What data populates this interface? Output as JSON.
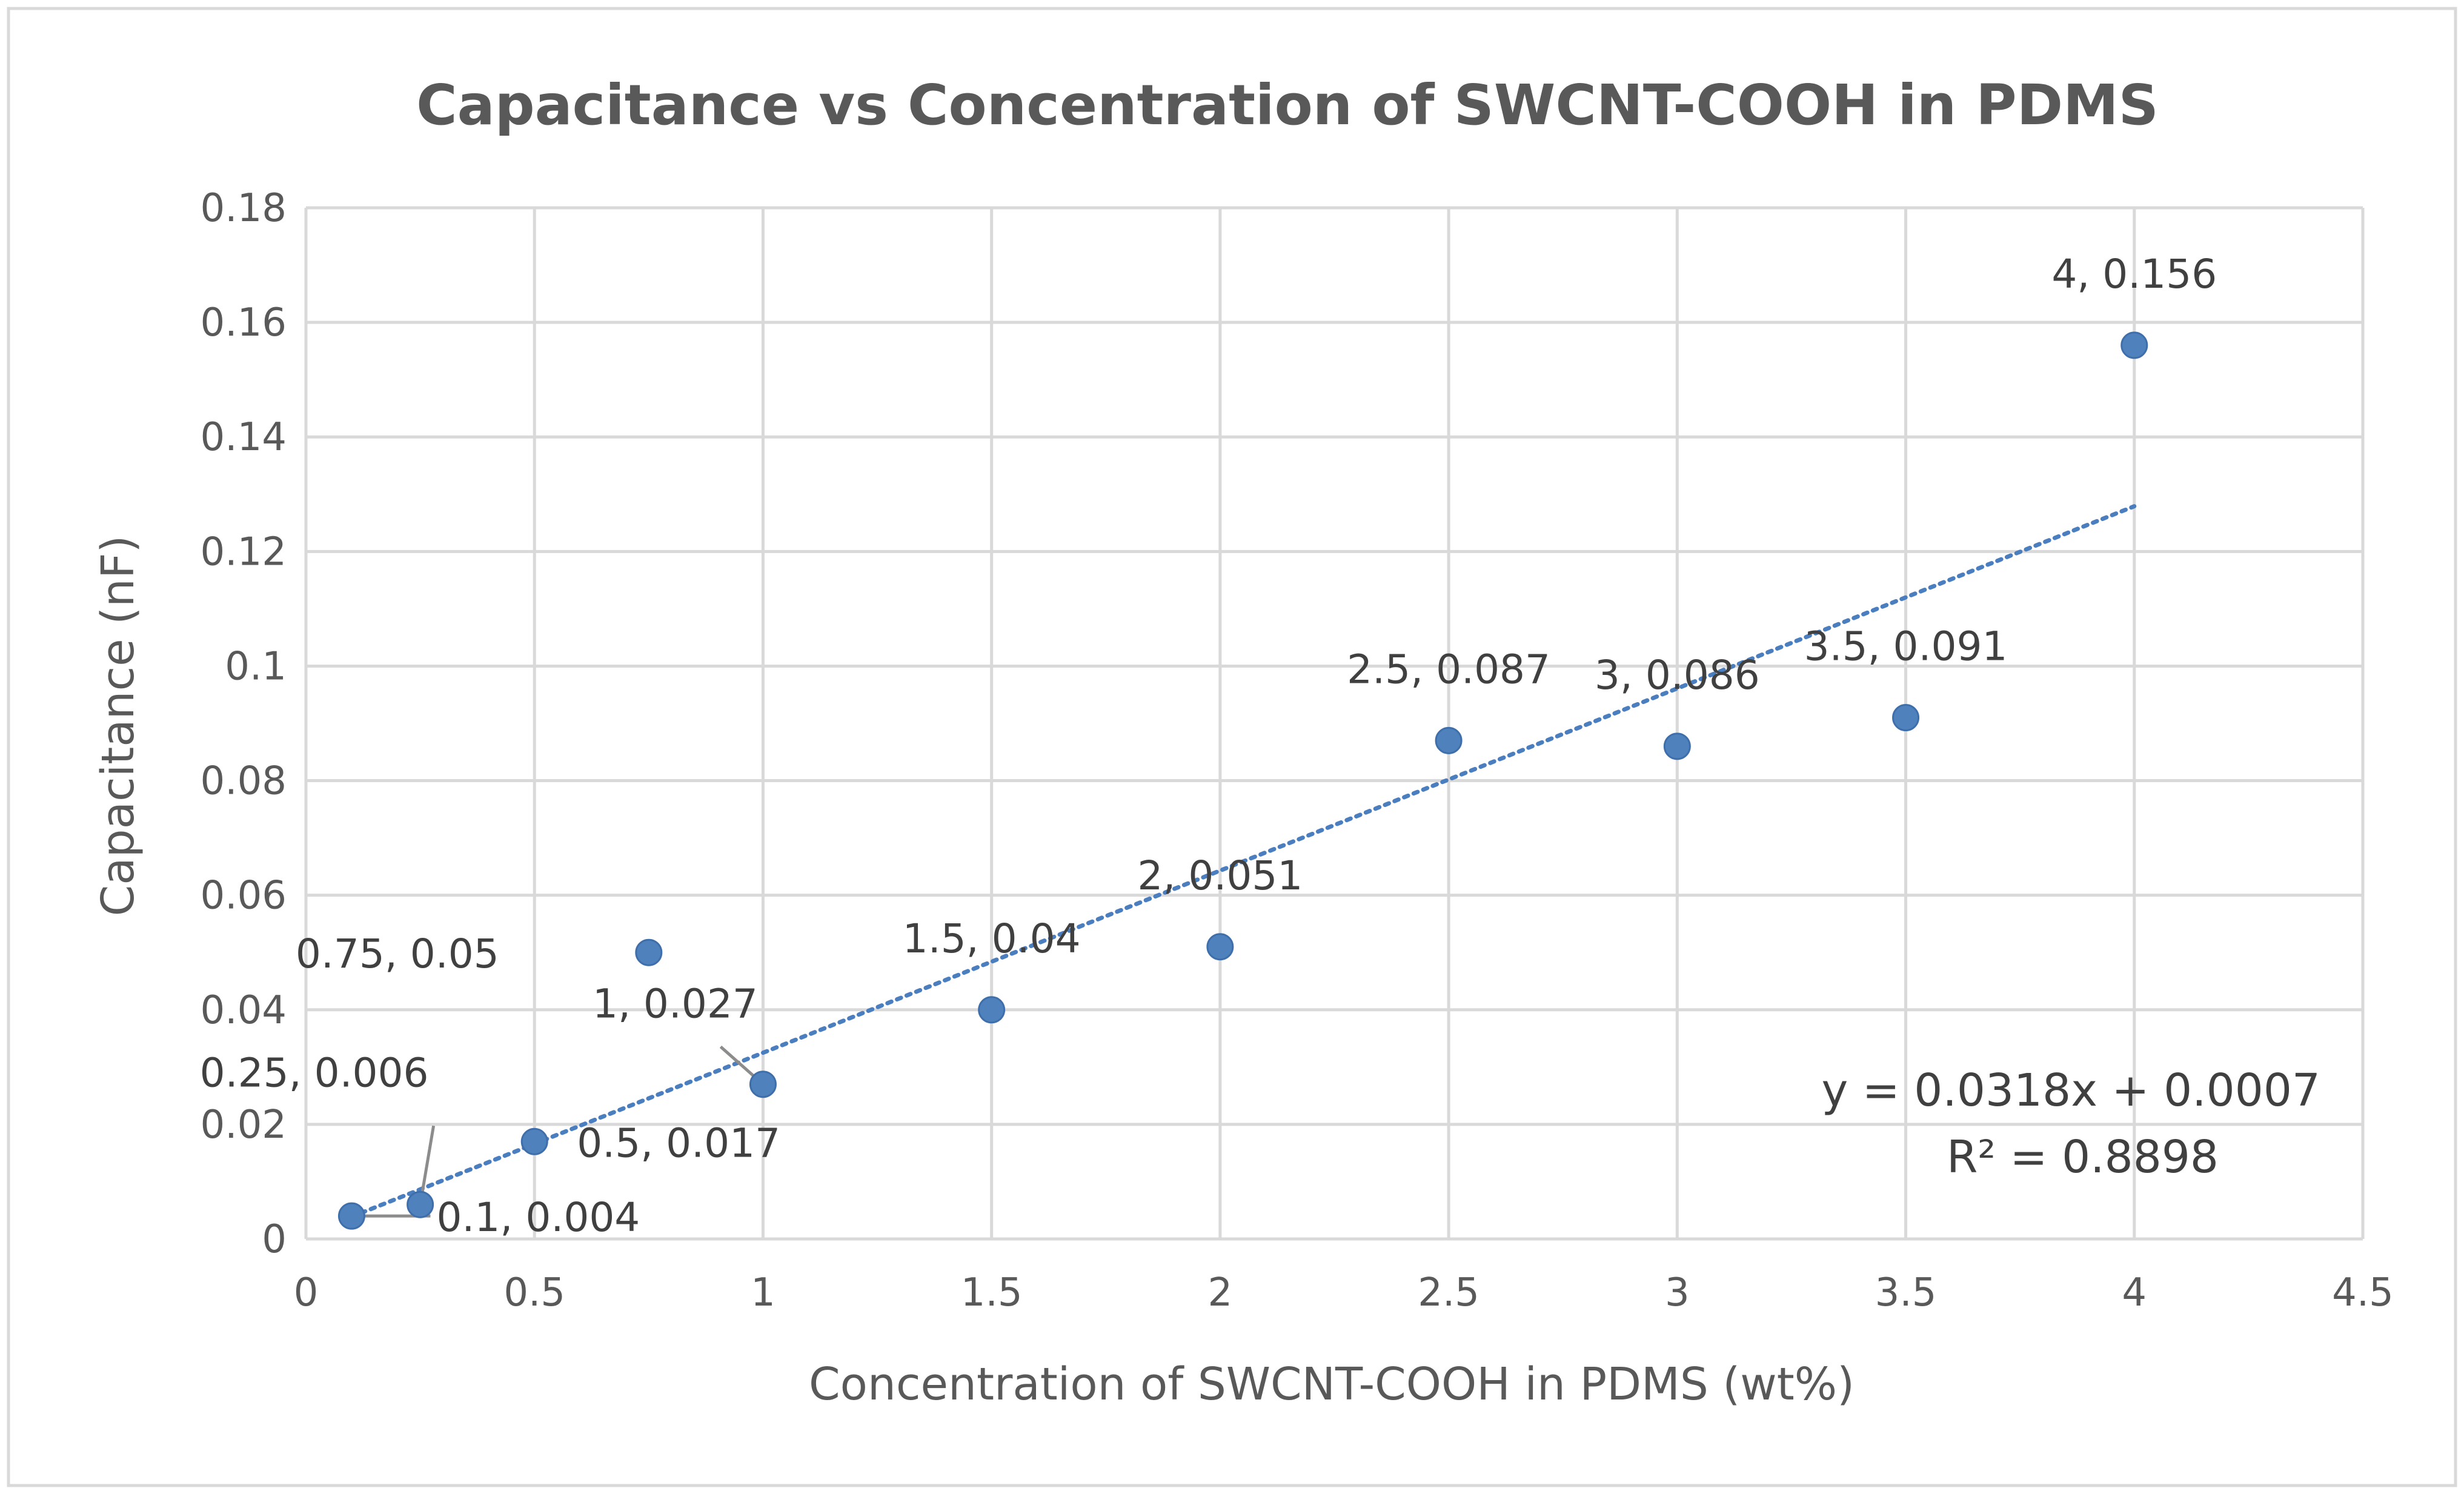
{
  "chart_data": {
    "type": "scatter",
    "title": "Capacitance vs Concentration of SWCNT-COOH in PDMS",
    "xlabel": "Concentration of SWCNT-COOH in PDMS (wt%)",
    "ylabel": "Capacitance (nF)",
    "xlim": [
      0,
      4.5
    ],
    "ylim": [
      0,
      0.18
    ],
    "xticks": [
      "0",
      "0.5",
      "1",
      "1.5",
      "2",
      "2.5",
      "3",
      "3.5",
      "4",
      "4.5"
    ],
    "yticks": [
      "0",
      "0.02",
      "0.04",
      "0.06",
      "0.08",
      "0.1",
      "0.12",
      "0.14",
      "0.16",
      "0.18"
    ],
    "grid": true,
    "legend": "none",
    "series": [
      {
        "name": "Capacitance",
        "color": "#4f81bd",
        "points": [
          {
            "x": 0.1,
            "y": 0.004,
            "label": "0.1, 0.004"
          },
          {
            "x": 0.25,
            "y": 0.006,
            "label": "0.25, 0.006"
          },
          {
            "x": 0.5,
            "y": 0.017,
            "label": "0.5, 0.017"
          },
          {
            "x": 0.75,
            "y": 0.05,
            "label": "0.75, 0.05"
          },
          {
            "x": 1,
            "y": 0.027,
            "label": "1, 0.027"
          },
          {
            "x": 1.5,
            "y": 0.04,
            "label": "1.5, 0.04"
          },
          {
            "x": 2,
            "y": 0.051,
            "label": "2, 0.051"
          },
          {
            "x": 2.5,
            "y": 0.087,
            "label": "2.5, 0.087"
          },
          {
            "x": 3,
            "y": 0.086,
            "label": "3, 0.086"
          },
          {
            "x": 3.5,
            "y": 0.091,
            "label": "3.5, 0.091"
          },
          {
            "x": 4,
            "y": 0.156,
            "label": "4, 0.156"
          }
        ]
      }
    ],
    "trendline": {
      "type": "linear",
      "slope": 0.0318,
      "intercept": 0.0007,
      "x_range": [
        0.1,
        4
      ],
      "equation": "y = 0.0318x + 0.0007",
      "r2": "R² = 0.8898",
      "color": "#4a7ebf"
    }
  }
}
